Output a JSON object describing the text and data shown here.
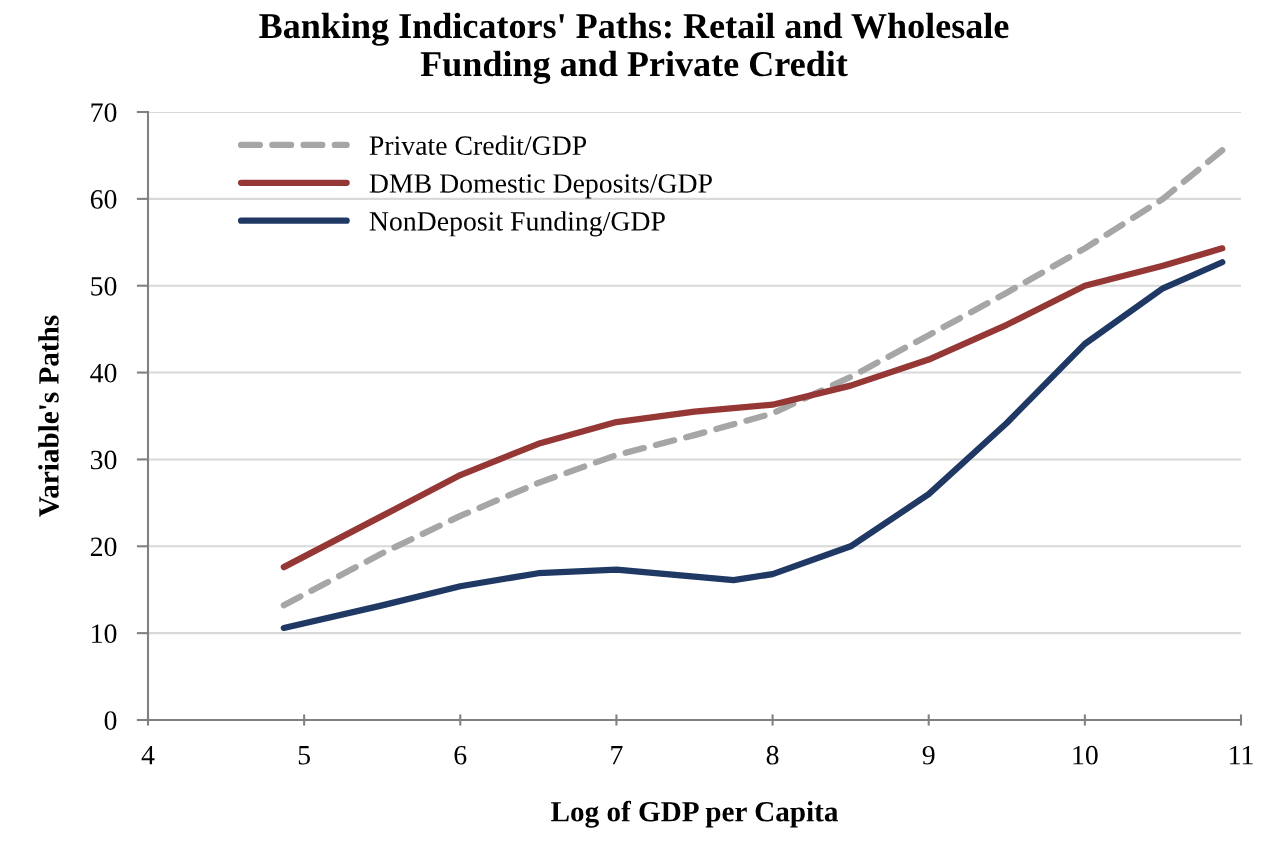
{
  "chart_data": {
    "type": "line",
    "title": "Banking Indicators' Paths: Retail and Wholesale\nFunding and Private Credit",
    "xlabel": "Log of GDP per Capita",
    "ylabel": "Variable's Paths",
    "xlim": [
      4,
      11
    ],
    "xticks": [
      4,
      5,
      6,
      7,
      8,
      9,
      10,
      11
    ],
    "ylim": [
      0,
      70
    ],
    "yticks": [
      0,
      10,
      20,
      30,
      40,
      50,
      60,
      70
    ],
    "grid": "y",
    "legend": "top left",
    "series": [
      {
        "name": "Private Credit/GDP",
        "color": "#a6a6a6",
        "line_style": "dashed",
        "x": [
          4.87,
          5.5,
          6,
          6.5,
          7,
          7.5,
          8,
          8.5,
          9,
          9.5,
          10,
          10.5,
          10.88
        ],
        "values": [
          13.2,
          19.2,
          23.5,
          27.3,
          30.5,
          32.8,
          35.3,
          39.5,
          44.3,
          49.2,
          54.3,
          60,
          65.6
        ]
      },
      {
        "name": "DMB Domestic Deposits/GDP",
        "color": "#953735",
        "line_style": "solid",
        "x": [
          4.87,
          5.5,
          6,
          6.5,
          7,
          7.5,
          8,
          8.5,
          9,
          9.5,
          10,
          10.5,
          10.88
        ],
        "values": [
          17.6,
          23.5,
          28.2,
          31.8,
          34.3,
          35.5,
          36.3,
          38.5,
          41.5,
          45.5,
          50,
          52.3,
          54.3
        ]
      },
      {
        "name": "NonDeposit Funding/GDP",
        "color": "#1f3864",
        "line_style": "solid",
        "x": [
          4.87,
          5.5,
          6,
          6.5,
          7,
          7.5,
          7.75,
          8,
          8.5,
          9,
          9.5,
          10,
          10.5,
          10.88
        ],
        "values": [
          10.6,
          13.2,
          15.4,
          16.9,
          17.3,
          16.5,
          16.1,
          16.8,
          20,
          26,
          34.2,
          43.3,
          49.7,
          52.7
        ]
      }
    ]
  }
}
